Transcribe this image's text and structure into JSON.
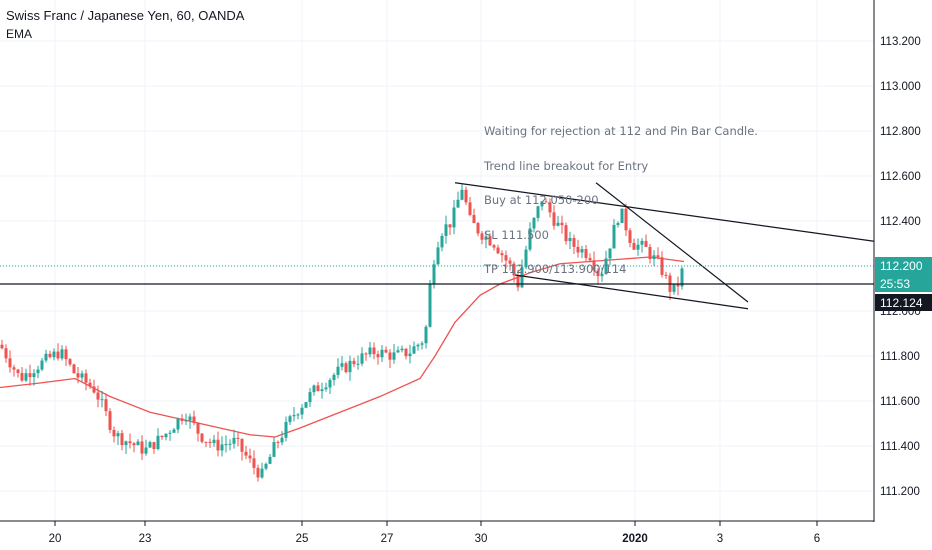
{
  "header": {
    "title": "Swiss Franc / Japanese Yen, 60, OANDA",
    "indicator": "EMA"
  },
  "annotation": {
    "lines": [
      "Waiting for rejection at 112 and Pin Bar Candle.",
      "Trend line breakout for Entry",
      "Buy at 112.050-200",
      "SL 111.500",
      "TP 112.900/113.900/114"
    ]
  },
  "price_labels": {
    "last_price": "112.200",
    "countdown": "25:53",
    "horizontal_level": "112.124"
  },
  "colors": {
    "up_candle": "#26a69a",
    "down_candle": "#ef5350",
    "ema": "#ef5350",
    "last_price_line": "#26a69a",
    "trendline": "#131722",
    "grid": "#f0f3fa"
  },
  "chart_data": {
    "type": "candlestick",
    "title": "Swiss Franc / Japanese Yen, 60, OANDA",
    "yaxis_ticks": [
      "113.200",
      "113.000",
      "112.800",
      "112.600",
      "112.400",
      "112.200",
      "112.000",
      "111.800",
      "111.600",
      "111.400",
      "111.200"
    ],
    "xaxis_ticks": [
      "20",
      "23",
      "25",
      "27",
      "30",
      "2020",
      "3",
      "6"
    ],
    "y_range": [
      111.1,
      113.35
    ],
    "series": [
      {
        "name": "EMA",
        "points": [
          [
            "20",
            111.66
          ],
          [
            "21",
            111.7
          ],
          [
            "23",
            111.56
          ],
          [
            "24",
            111.45
          ],
          [
            "25",
            111.5
          ],
          [
            "27",
            111.68
          ],
          [
            "28",
            111.9
          ],
          [
            "29",
            112.05
          ],
          [
            "30",
            112.13
          ],
          [
            "31",
            112.19
          ],
          [
            "2020",
            112.22
          ],
          [
            "2",
            112.24
          ]
        ]
      }
    ],
    "trendlines": [
      {
        "from": [
          "29",
          112.57
        ],
        "to": [
          "6+",
          112.31
        ]
      },
      {
        "from": [
          "30",
          112.16
        ],
        "to": [
          "3+",
          112.01
        ]
      },
      {
        "from": [
          "31+",
          112.57
        ],
        "to": [
          "3",
          112.04
        ]
      }
    ],
    "horizontal_lines": [
      {
        "value": 112.124,
        "label": "112.124"
      },
      {
        "value": 112.2,
        "label": "112.200",
        "style": "dotted"
      }
    ]
  }
}
